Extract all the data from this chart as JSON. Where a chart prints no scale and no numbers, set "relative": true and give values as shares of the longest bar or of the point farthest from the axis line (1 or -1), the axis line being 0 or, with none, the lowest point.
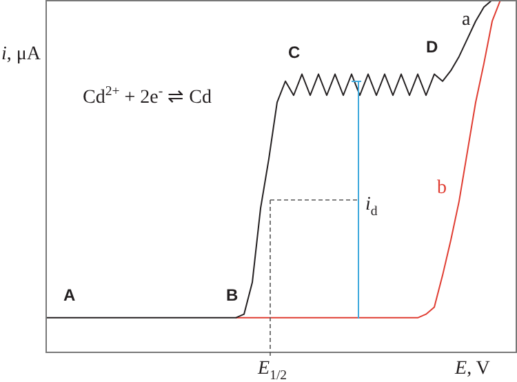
{
  "chart_data": {
    "type": "line",
    "relative": true,
    "ylabel": "i, μA",
    "xlabel": "E, V",
    "legend": false,
    "marker": "none",
    "line_style": "solid",
    "categories": [
      null,
      null,
      null,
      null,
      null,
      null,
      null,
      null,
      null,
      null,
      null,
      null,
      null,
      null,
      null,
      null,
      null,
      null,
      null,
      null,
      null,
      null,
      null,
      null,
      null,
      null,
      null,
      null,
      null,
      null,
      null,
      null,
      null,
      null,
      null,
      null,
      null,
      null,
      null,
      null,
      null,
      null,
      null,
      null,
      null,
      null,
      null,
      null,
      null,
      null,
      null,
      null,
      null,
      null,
      null,
      null,
      null,
      null
    ],
    "series": [
      {
        "name": "a",
        "color": "#231f20",
        "values": [
          0.1,
          0.1,
          0.1,
          0.1,
          0.1,
          0.1,
          0.1,
          0.1,
          0.1,
          0.1,
          0.1,
          0.1,
          0.1,
          0.1,
          0.1,
          0.1,
          0.1,
          0.1,
          0.1,
          0.1,
          0.1,
          0.1,
          0.1,
          0.1,
          0.11,
          0.2,
          0.41,
          0.55,
          0.71,
          0.77,
          0.73,
          0.79,
          0.73,
          0.79,
          0.73,
          0.79,
          0.73,
          0.79,
          0.73,
          0.79,
          0.73,
          0.79,
          0.73,
          0.79,
          0.73,
          0.79,
          0.73,
          0.79,
          0.77,
          0.8,
          0.84,
          0.89,
          0.94,
          0.98,
          1,
          null,
          null,
          null
        ]
      },
      {
        "name": "b",
        "color": "#e03c31",
        "values": [
          null,
          null,
          null,
          null,
          null,
          null,
          null,
          null,
          null,
          null,
          null,
          null,
          null,
          null,
          null,
          null,
          null,
          null,
          null,
          null,
          null,
          null,
          null,
          0.1,
          0.1,
          0.1,
          0.1,
          0.1,
          0.1,
          0.1,
          0.1,
          0.1,
          0.1,
          0.1,
          0.1,
          0.1,
          0.1,
          0.1,
          0.1,
          0.1,
          0.1,
          0.1,
          0.1,
          0.1,
          0.1,
          0.1,
          0.11,
          0.13,
          0.22,
          0.32,
          0.43,
          0.57,
          0.71,
          0.82,
          0.94,
          1,
          null,
          null
        ]
      }
    ],
    "annotations": [
      "A",
      "B",
      "C",
      "D",
      "Cd$^{2+}$ + 2e$^{-}$ ⇌ Cd",
      "i$_{d}$",
      "E$_{1/2}$"
    ]
  }
}
